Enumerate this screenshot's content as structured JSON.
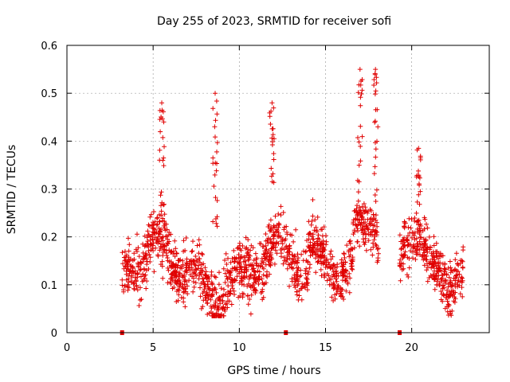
{
  "chart_data": {
    "type": "scatter",
    "title": "Day 255 of 2023, SRMTID for receiver sofi",
    "xlabel": "GPS time / hours",
    "ylabel": "SRMTID / TECUs",
    "xlim": [
      0,
      24.5
    ],
    "ylim": [
      0,
      0.6
    ],
    "xticks": [
      0,
      5,
      10,
      15,
      20
    ],
    "yticks": [
      0,
      0.1,
      0.2,
      0.3,
      0.4,
      0.5,
      0.6
    ],
    "ytick_labels": [
      "0",
      "0.1",
      "0.2",
      "0.3",
      "0.4",
      "0.5",
      "0.6"
    ],
    "grid": true,
    "marker": "plus",
    "color": "#e00000",
    "gap_markers_x": [
      3.2,
      12.7,
      19.3
    ],
    "point_count": 1700,
    "segments": [
      {
        "x_start": 3.2,
        "x_end": 18.1,
        "typical_range": [
          0.05,
          0.3
        ]
      },
      {
        "x_start": 19.3,
        "x_end": 23.0,
        "typical_range": [
          0.05,
          0.28
        ]
      }
    ],
    "notable_peaks": [
      {
        "x": 5.5,
        "y": 0.48
      },
      {
        "x": 8.6,
        "y": 0.5
      },
      {
        "x": 11.9,
        "y": 0.48
      },
      {
        "x": 17.0,
        "y": 0.55
      },
      {
        "x": 17.9,
        "y": 0.55
      },
      {
        "x": 20.4,
        "y": 0.385
      }
    ]
  }
}
